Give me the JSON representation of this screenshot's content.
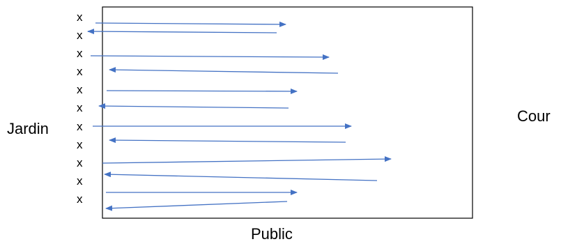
{
  "labels": {
    "left": "Jardin",
    "right": "Cour",
    "bottom": "Public"
  },
  "marker_glyph": "x",
  "colors": {
    "arrow": "#4472C4",
    "stage_border": "#000000",
    "text": "#000000"
  },
  "markers": [
    "x",
    "x",
    "x",
    "x",
    "x",
    "x",
    "x",
    "x",
    "x",
    "x",
    "x"
  ]
}
